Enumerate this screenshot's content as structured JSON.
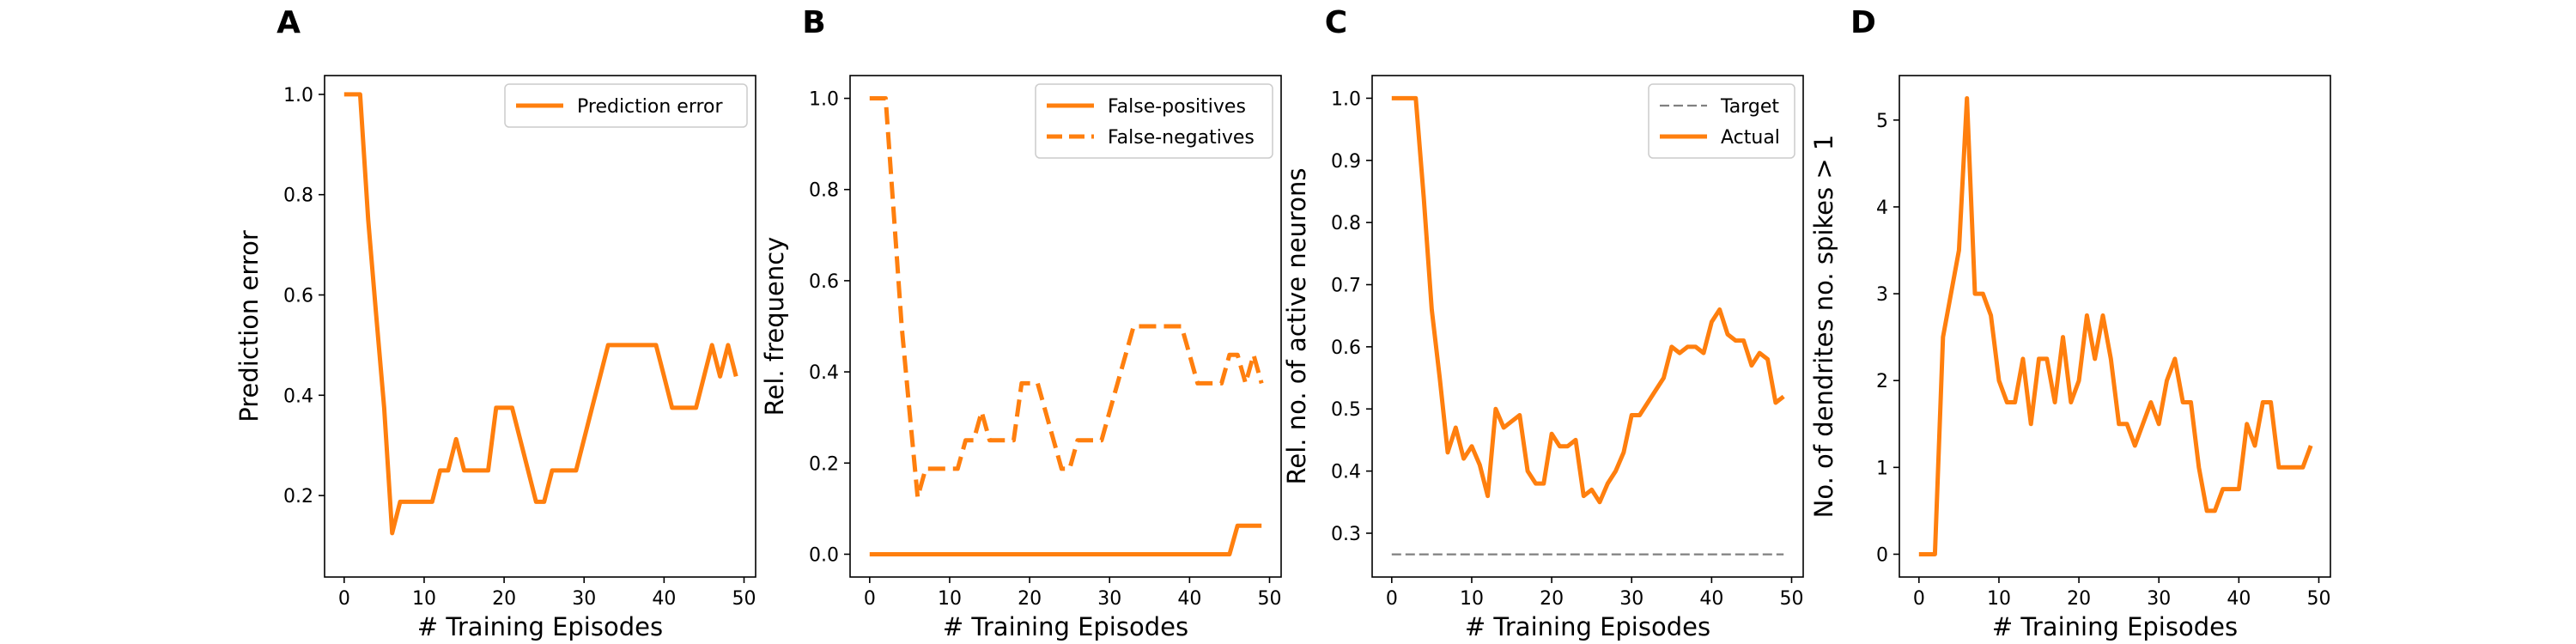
{
  "chart_data": [
    {
      "panel": "A",
      "type": "line",
      "xlabel": "# Training Episodes",
      "ylabel": "Prediction error",
      "xlim": [
        -2.45,
        51.45
      ],
      "ylim": [
        0.0375,
        1.0375
      ],
      "xticks": [
        0,
        10,
        20,
        30,
        40,
        50
      ],
      "yticks": [
        0.2,
        0.4,
        0.6,
        0.8,
        1.0
      ],
      "ytick_labels": [
        "0.2",
        "0.4",
        "0.6",
        "0.8",
        "1.0"
      ],
      "legend_position": "top-right",
      "series": [
        {
          "name": "Prediction error",
          "color": "#ff7f0e",
          "dash": "solid",
          "x": [
            0,
            1,
            2,
            3,
            4,
            5,
            6,
            7,
            8,
            9,
            10,
            11,
            12,
            13,
            14,
            15,
            16,
            17,
            18,
            19,
            20,
            21,
            22,
            23,
            24,
            25,
            26,
            27,
            28,
            29,
            30,
            31,
            32,
            33,
            34,
            35,
            36,
            37,
            38,
            39,
            40,
            41,
            42,
            43,
            44,
            45,
            46,
            47,
            48,
            49
          ],
          "y": [
            1.0,
            1.0,
            1.0,
            0.75,
            0.56,
            0.375,
            0.125,
            0.1875,
            0.1875,
            0.1875,
            0.1875,
            0.1875,
            0.25,
            0.25,
            0.3125,
            0.25,
            0.25,
            0.25,
            0.25,
            0.375,
            0.375,
            0.375,
            0.3125,
            0.25,
            0.1875,
            0.1875,
            0.25,
            0.25,
            0.25,
            0.25,
            0.3125,
            0.375,
            0.4375,
            0.5,
            0.5,
            0.5,
            0.5,
            0.5,
            0.5,
            0.5,
            0.4375,
            0.375,
            0.375,
            0.375,
            0.375,
            0.4375,
            0.5,
            0.4375,
            0.5,
            0.4375
          ]
        }
      ]
    },
    {
      "panel": "B",
      "type": "line",
      "xlabel": "# Training Episodes",
      "ylabel": "Rel. frequency",
      "xlim": [
        -2.45,
        51.45
      ],
      "ylim": [
        -0.05,
        1.05
      ],
      "xticks": [
        0,
        10,
        20,
        30,
        40,
        50
      ],
      "yticks": [
        0.0,
        0.2,
        0.4,
        0.6,
        0.8,
        1.0
      ],
      "ytick_labels": [
        "0.0",
        "0.2",
        "0.4",
        "0.6",
        "0.8",
        "1.0"
      ],
      "legend_position": "top-right",
      "series": [
        {
          "name": "False-positives",
          "color": "#ff7f0e",
          "dash": "solid",
          "x": [
            0,
            1,
            2,
            3,
            4,
            5,
            6,
            7,
            8,
            9,
            10,
            11,
            12,
            13,
            14,
            15,
            16,
            17,
            18,
            19,
            20,
            21,
            22,
            23,
            24,
            25,
            26,
            27,
            28,
            29,
            30,
            31,
            32,
            33,
            34,
            35,
            36,
            37,
            38,
            39,
            40,
            41,
            42,
            43,
            44,
            45,
            46,
            47,
            48,
            49
          ],
          "y": [
            0,
            0,
            0,
            0,
            0,
            0,
            0,
            0,
            0,
            0,
            0,
            0,
            0,
            0,
            0,
            0,
            0,
            0,
            0,
            0,
            0,
            0,
            0,
            0,
            0,
            0,
            0,
            0,
            0,
            0,
            0,
            0,
            0,
            0,
            0,
            0,
            0,
            0,
            0,
            0,
            0,
            0,
            0,
            0,
            0,
            0,
            0.0625,
            0.0625,
            0.0625,
            0.0625
          ]
        },
        {
          "name": "False-negatives",
          "color": "#ff7f0e",
          "dash": "dashed",
          "x": [
            0,
            1,
            2,
            3,
            4,
            5,
            6,
            7,
            8,
            9,
            10,
            11,
            12,
            13,
            14,
            15,
            16,
            17,
            18,
            19,
            20,
            21,
            22,
            23,
            24,
            25,
            26,
            27,
            28,
            29,
            30,
            31,
            32,
            33,
            34,
            35,
            36,
            37,
            38,
            39,
            40,
            41,
            42,
            43,
            44,
            45,
            46,
            47,
            48,
            49
          ],
          "y": [
            1.0,
            1.0,
            1.0,
            0.75,
            0.5,
            0.31,
            0.125,
            0.1875,
            0.1875,
            0.1875,
            0.1875,
            0.1875,
            0.25,
            0.25,
            0.3125,
            0.25,
            0.25,
            0.25,
            0.25,
            0.375,
            0.375,
            0.375,
            0.3125,
            0.25,
            0.1875,
            0.1875,
            0.25,
            0.25,
            0.25,
            0.25,
            0.3125,
            0.375,
            0.4375,
            0.5,
            0.5,
            0.5,
            0.5,
            0.5,
            0.5,
            0.5,
            0.4375,
            0.375,
            0.375,
            0.375,
            0.375,
            0.4375,
            0.4375,
            0.375,
            0.4375,
            0.375
          ]
        }
      ]
    },
    {
      "panel": "C",
      "type": "line",
      "xlabel": "# Training Episodes",
      "ylabel": "Rel. no. of active neurons",
      "xlim": [
        -2.45,
        51.45
      ],
      "ylim": [
        0.2295,
        1.0365
      ],
      "xticks": [
        0,
        10,
        20,
        30,
        40,
        50
      ],
      "yticks": [
        0.3,
        0.4,
        0.5,
        0.6,
        0.7,
        0.8,
        0.9,
        1.0
      ],
      "ytick_labels": [
        "0.3",
        "0.4",
        "0.5",
        "0.6",
        "0.7",
        "0.8",
        "0.9",
        "1.0"
      ],
      "legend_position": "top-right",
      "series": [
        {
          "name": "Target",
          "color": "#808080",
          "dash": "dashed",
          "x": [
            0,
            49
          ],
          "y": [
            0.266,
            0.266
          ]
        },
        {
          "name": "Actual",
          "color": "#ff7f0e",
          "dash": "solid",
          "x": [
            0,
            1,
            2,
            3,
            4,
            5,
            6,
            7,
            8,
            9,
            10,
            11,
            12,
            13,
            14,
            15,
            16,
            17,
            18,
            19,
            20,
            21,
            22,
            23,
            24,
            25,
            26,
            27,
            28,
            29,
            30,
            31,
            32,
            33,
            34,
            35,
            36,
            37,
            38,
            39,
            40,
            41,
            42,
            43,
            44,
            45,
            46,
            47,
            48,
            49
          ],
          "y": [
            1.0,
            1.0,
            1.0,
            1.0,
            0.84,
            0.66,
            0.55,
            0.43,
            0.47,
            0.42,
            0.44,
            0.41,
            0.36,
            0.5,
            0.47,
            0.48,
            0.49,
            0.4,
            0.38,
            0.38,
            0.46,
            0.44,
            0.44,
            0.45,
            0.36,
            0.37,
            0.35,
            0.38,
            0.4,
            0.43,
            0.49,
            0.49,
            0.51,
            0.53,
            0.55,
            0.6,
            0.59,
            0.6,
            0.6,
            0.59,
            0.64,
            0.66,
            0.62,
            0.61,
            0.61,
            0.57,
            0.59,
            0.58,
            0.51,
            0.52
          ]
        }
      ]
    },
    {
      "panel": "D",
      "type": "line",
      "xlabel": "# Training Episodes",
      "ylabel": "No. of dendrites no. spikes > 1",
      "xlim": [
        -2.45,
        51.45
      ],
      "ylim": [
        -0.2625,
        5.5125
      ],
      "xticks": [
        0,
        10,
        20,
        30,
        40,
        50
      ],
      "yticks": [
        0,
        1,
        2,
        3,
        4,
        5
      ],
      "ytick_labels": [
        "0",
        "1",
        "2",
        "3",
        "4",
        "5"
      ],
      "series": [
        {
          "color": "#ff7f0e",
          "dash": "solid",
          "x": [
            0,
            1,
            2,
            3,
            4,
            5,
            6,
            7,
            8,
            9,
            10,
            11,
            12,
            13,
            14,
            15,
            16,
            17,
            18,
            19,
            20,
            21,
            22,
            23,
            24,
            25,
            26,
            27,
            28,
            29,
            30,
            31,
            32,
            33,
            34,
            35,
            36,
            37,
            38,
            39,
            40,
            41,
            42,
            43,
            44,
            45,
            46,
            47,
            48,
            49
          ],
          "y": [
            0,
            0,
            0,
            2.5,
            3.0,
            3.5,
            5.25,
            3.0,
            3.0,
            2.75,
            2.0,
            1.75,
            1.75,
            2.25,
            1.5,
            2.25,
            2.25,
            1.75,
            2.5,
            1.75,
            2.0,
            2.75,
            2.25,
            2.75,
            2.25,
            1.5,
            1.5,
            1.25,
            1.5,
            1.75,
            1.5,
            2.0,
            2.25,
            1.75,
            1.75,
            1.0,
            0.5,
            0.5,
            0.75,
            0.75,
            0.75,
            1.5,
            1.25,
            1.75,
            1.75,
            1.0,
            1.0,
            1.0,
            1.0,
            1.25
          ]
        }
      ]
    }
  ]
}
